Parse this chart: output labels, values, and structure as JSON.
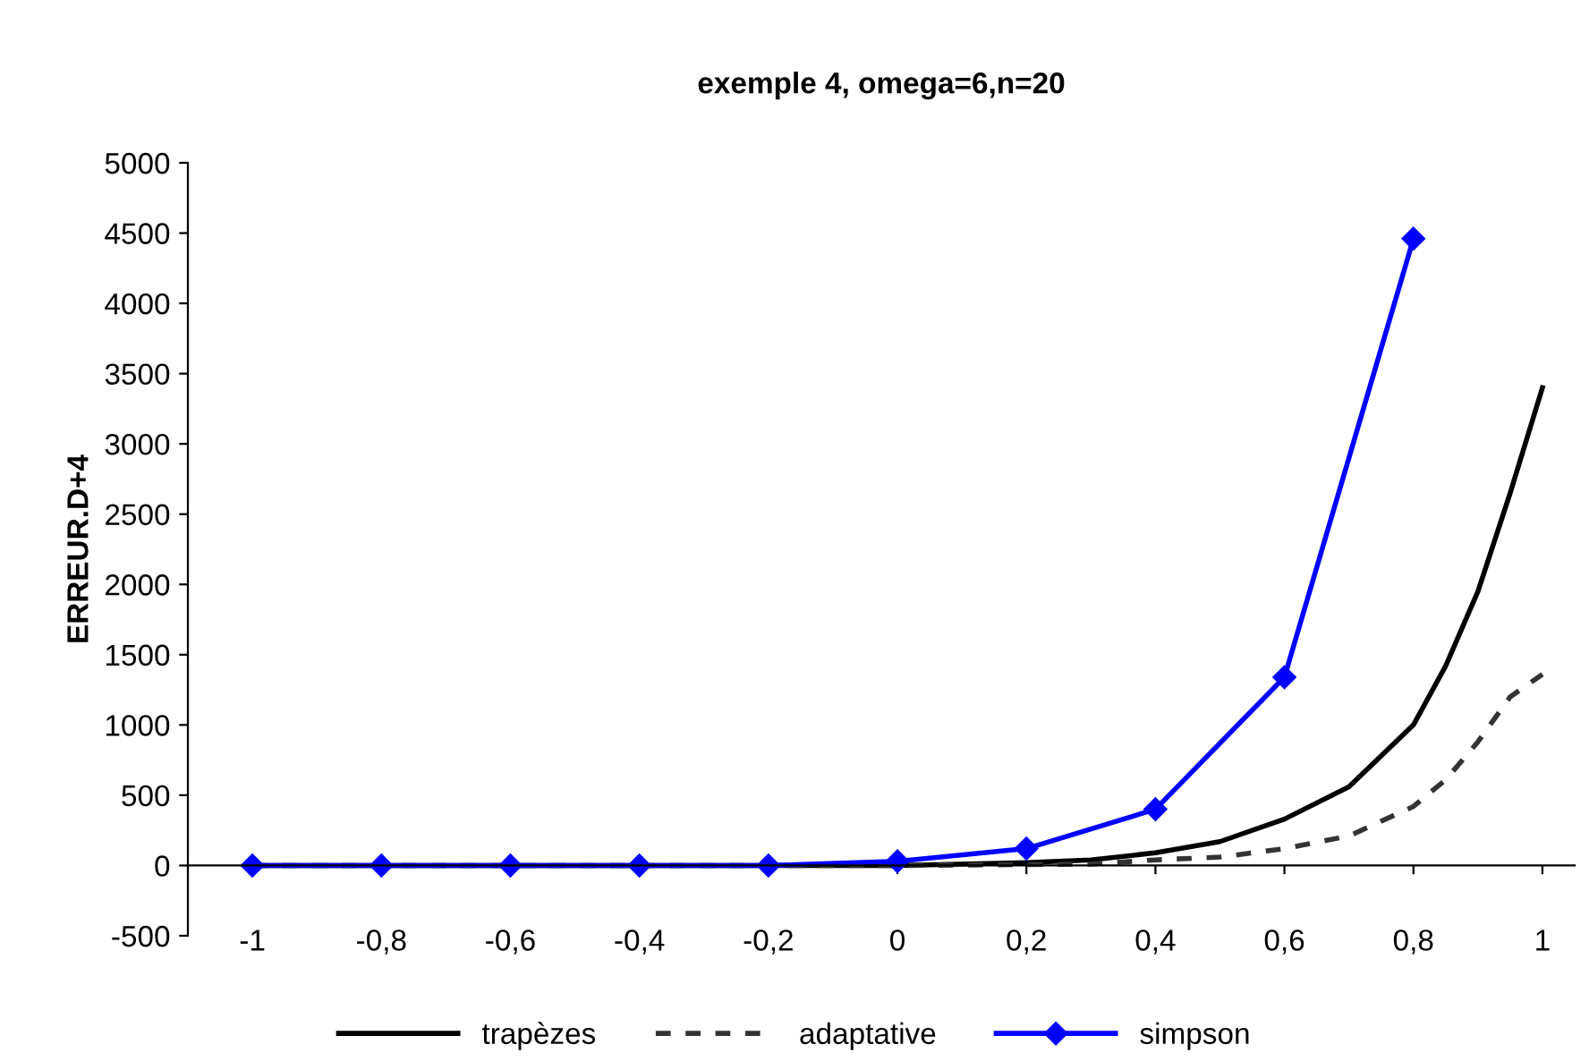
{
  "chart_data": {
    "type": "line",
    "title": "exemple 4, omega=6,n=20",
    "ylabel": "ERREUR.D+4",
    "xlim": [
      -1.1,
      1.05
    ],
    "xticks": [
      {
        "value": -1,
        "label": "-1"
      },
      {
        "value": -0.8,
        "label": "-0,8"
      },
      {
        "value": -0.6,
        "label": "-0,6"
      },
      {
        "value": -0.4,
        "label": "-0,4"
      },
      {
        "value": -0.2,
        "label": "-0,2"
      },
      {
        "value": 0,
        "label": "0"
      },
      {
        "value": 0.2,
        "label": "0,2"
      },
      {
        "value": 0.4,
        "label": "0,4"
      },
      {
        "value": 0.6,
        "label": "0,6"
      },
      {
        "value": 0.8,
        "label": "0,8"
      },
      {
        "value": 1,
        "label": "1"
      }
    ],
    "ylim": [
      -500,
      5000
    ],
    "yticks": [
      -500,
      0,
      500,
      1000,
      1500,
      2000,
      2500,
      3000,
      3500,
      4000,
      4500,
      5000
    ],
    "grid": false,
    "legend": "bottom",
    "series": [
      {
        "name": "trapèzes",
        "color": "#000000",
        "line_style": "solid",
        "marker": "none",
        "x": [
          -1,
          -0.5,
          0,
          0.2,
          0.3,
          0.4,
          0.5,
          0.6,
          0.7,
          0.8,
          0.85,
          0.9,
          0.95,
          1
        ],
        "values": [
          0,
          0,
          0,
          20,
          40,
          90,
          170,
          330,
          560,
          1000,
          1420,
          1950,
          2650,
          3400
        ]
      },
      {
        "name": "adaptative",
        "color": "#333333",
        "line_style": "dashed",
        "marker": "none",
        "x": [
          -1,
          0,
          0.3,
          0.4,
          0.5,
          0.6,
          0.7,
          0.8,
          0.85,
          0.9,
          0.95,
          1
        ],
        "values": [
          0,
          0,
          10,
          40,
          60,
          120,
          210,
          420,
          610,
          880,
          1200,
          1360
        ]
      },
      {
        "name": "simpson",
        "color": "#0000ff",
        "line_style": "solid",
        "marker": "diamond",
        "x": [
          -1,
          -0.8,
          -0.6,
          -0.4,
          -0.2,
          0,
          0.2,
          0.4,
          0.6,
          0.8
        ],
        "values": [
          0,
          0,
          0,
          0,
          0,
          30,
          120,
          400,
          1340,
          4460
        ]
      }
    ]
  }
}
